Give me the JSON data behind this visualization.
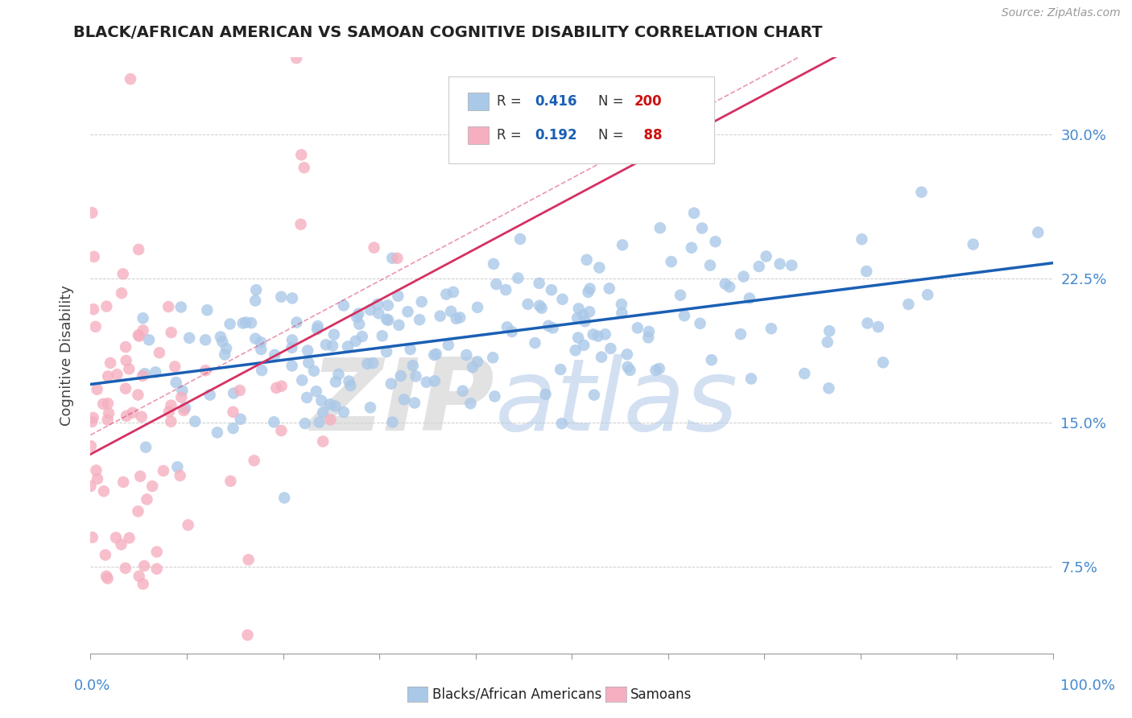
{
  "title": "BLACK/AFRICAN AMERICAN VS SAMOAN COGNITIVE DISABILITY CORRELATION CHART",
  "source": "Source: ZipAtlas.com",
  "ylabel": "Cognitive Disability",
  "y_ticks": [
    0.075,
    0.15,
    0.225,
    0.3
  ],
  "y_tick_labels": [
    "7.5%",
    "15.0%",
    "22.5%",
    "30.0%"
  ],
  "xlim": [
    0.0,
    1.0
  ],
  "ylim": [
    0.03,
    0.34
  ],
  "blue_R": 0.416,
  "blue_N": 200,
  "pink_R": 0.192,
  "pink_N": 88,
  "blue_color": "#aac8e8",
  "pink_color": "#f5afc0",
  "blue_line_color": "#1a5fb4",
  "pink_line_color": "#d63060",
  "legend_label_blue": "Blacks/African Americans",
  "legend_label_pink": "Samoans",
  "watermark_ZIP": "ZIP",
  "watermark_atlas": "atlas",
  "background_color": "#ffffff",
  "title_color": "#222222",
  "tick_color": "#4488cc",
  "grid_color": "#cccccc",
  "seed_blue": 42,
  "seed_pink": 7
}
